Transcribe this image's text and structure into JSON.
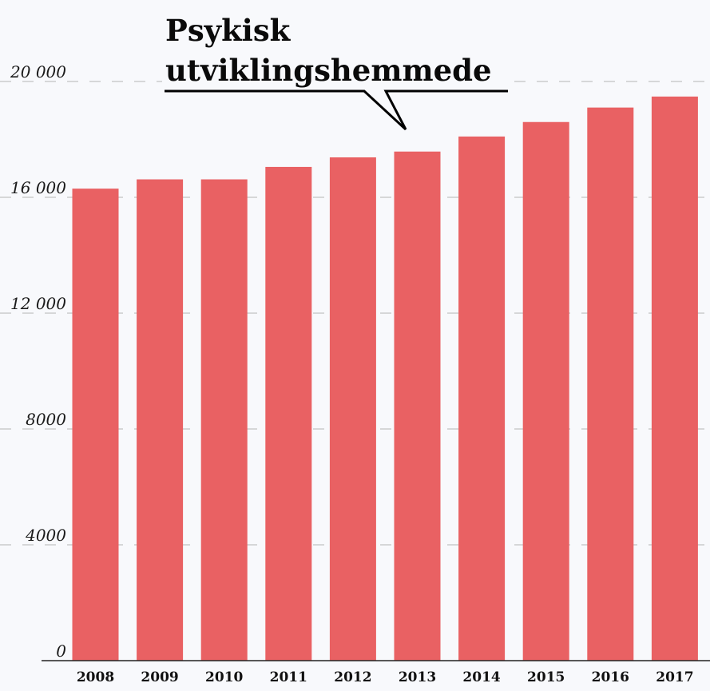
{
  "chart_data": {
    "type": "bar",
    "title": "",
    "xlabel": "",
    "ylabel": "",
    "categories": [
      "2008",
      "2009",
      "2010",
      "2011",
      "2012",
      "2013",
      "2014",
      "2015",
      "2016",
      "2017"
    ],
    "values": [
      16300,
      16620,
      16620,
      17050,
      17380,
      17580,
      18100,
      18600,
      19100,
      19480
    ],
    "ylim": [
      0,
      20000
    ],
    "yticks": [
      0,
      4000,
      8000,
      12000,
      16000,
      20000
    ],
    "ytick_labels": [
      "0",
      "4000",
      "8000",
      "12 000",
      "16 000",
      "20 000"
    ],
    "grid": true,
    "bar_color": "#e96163",
    "annotation": {
      "lines": [
        "Psykisk",
        "utviklingshemmede"
      ]
    }
  }
}
